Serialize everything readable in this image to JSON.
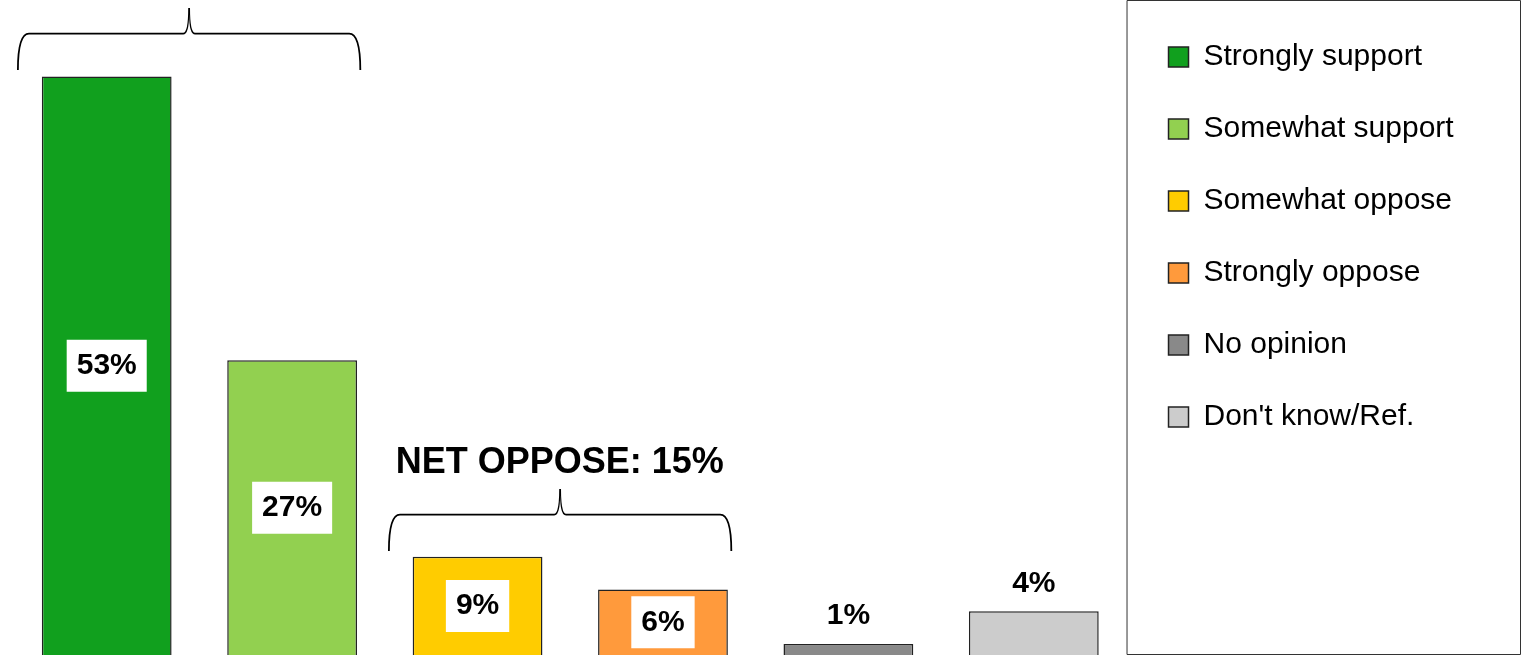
{
  "chart_data": {
    "type": "bar",
    "categories": [
      null,
      null,
      null,
      null,
      null,
      null
    ],
    "stacked": true,
    "series": [
      {
        "name": "Strongly support",
        "color": "#11a01e",
        "values": [
          53,
          null,
          null,
          null,
          null,
          null
        ],
        "value_labels": [
          "53%",
          null,
          null,
          null,
          null,
          null
        ]
      },
      {
        "name": "Somewhat support",
        "color": "#92d050",
        "values": [
          null,
          27,
          null,
          null,
          null,
          null
        ],
        "value_labels": [
          null,
          "27%",
          null,
          null,
          null,
          null
        ]
      },
      {
        "name": "Somewhat oppose",
        "color": "#ffcc00",
        "values": [
          null,
          null,
          9,
          null,
          null,
          null
        ],
        "value_labels": [
          null,
          null,
          "9%",
          null,
          null,
          null
        ]
      },
      {
        "name": "Strongly oppose",
        "color": "#ff9a3c",
        "values": [
          null,
          null,
          null,
          6,
          null,
          null
        ],
        "value_labels": [
          null,
          null,
          null,
          "6%",
          null,
          null
        ]
      },
      {
        "name": "No opinion",
        "color": "#898989",
        "values": [
          null,
          null,
          null,
          null,
          1,
          null
        ],
        "value_labels": [
          null,
          null,
          null,
          null,
          "1%",
          null
        ]
      },
      {
        "name": "Don't know/Ref.",
        "color": "#cccccc",
        "values": [
          null,
          null,
          null,
          null,
          null,
          4
        ],
        "value_labels": [
          null,
          null,
          null,
          null,
          null,
          "4%"
        ]
      }
    ],
    "annotations": [
      "NET OPPOSE: 15%"
    ],
    "legend": "top right",
    "tick_labels": false
  }
}
